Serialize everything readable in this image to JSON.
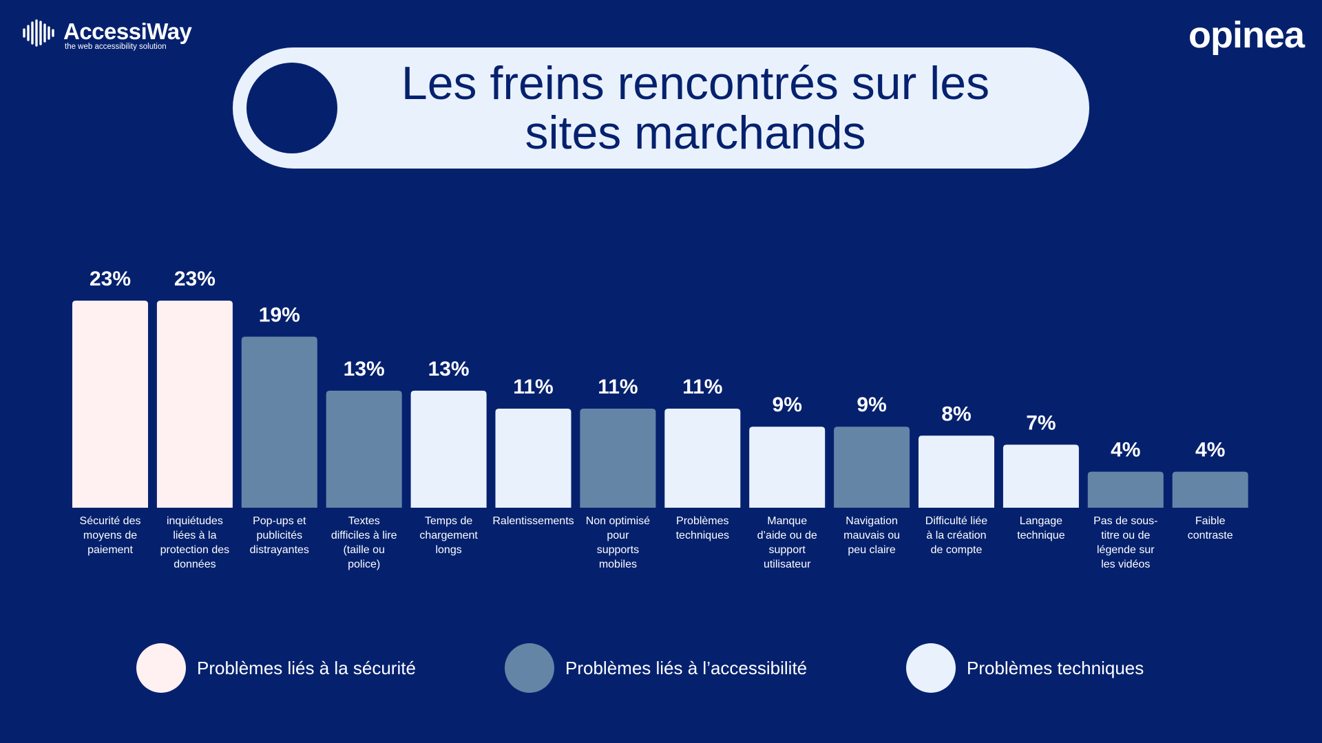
{
  "brand": {
    "left_name": "AccessiWay",
    "left_tagline": "the web accessibility solution",
    "right_name": "opinea"
  },
  "title": {
    "line1": "Les freins rencontrés sur les",
    "line2": "sites marchands"
  },
  "colors": {
    "background": "#05216e",
    "security": "#fff0f2",
    "accessibility": "#6585a6",
    "technical": "#e9f1fd"
  },
  "chart_data": {
    "type": "bar",
    "title": "Les freins rencontrés sur les sites marchands",
    "xlabel": "",
    "ylabel": "",
    "ylim": [
      0,
      23
    ],
    "grid": false,
    "unit": "%",
    "bars": [
      {
        "label": "Sécurité des moyens de paiement",
        "lines": [
          "Sécurité des",
          "moyens de",
          "paiement"
        ],
        "value": 23,
        "group": "security"
      },
      {
        "label": "inquiétudes liées à la protection des données",
        "lines": [
          "inquiétudes",
          "liées à la",
          "protection des",
          "données"
        ],
        "value": 23,
        "group": "security"
      },
      {
        "label": "Pop-ups et publicités distrayantes",
        "lines": [
          "Pop-ups et",
          "publicités",
          "distrayantes"
        ],
        "value": 19,
        "group": "accessibility"
      },
      {
        "label": "Textes difficiles à lire (taille ou police)",
        "lines": [
          "Textes",
          "difficiles à lire",
          "(taille ou",
          "police)"
        ],
        "value": 13,
        "group": "accessibility"
      },
      {
        "label": "Temps de chargement longs",
        "lines": [
          "Temps de",
          "chargement",
          "longs"
        ],
        "value": 13,
        "group": "technical"
      },
      {
        "label": "Ralentissements",
        "lines": [
          "Ralentissements"
        ],
        "value": 11,
        "group": "technical"
      },
      {
        "label": "Non optimisé pour supports mobiles",
        "lines": [
          "Non optimisé",
          "pour",
          "supports",
          "mobiles"
        ],
        "value": 11,
        "group": "accessibility"
      },
      {
        "label": "Problèmes techniques",
        "lines": [
          "Problèmes",
          "techniques"
        ],
        "value": 11,
        "group": "technical"
      },
      {
        "label": "Manque d'aide ou de support utilisateur",
        "lines": [
          "Manque",
          "d’aide ou de",
          "support",
          "utilisateur"
        ],
        "value": 9,
        "group": "technical"
      },
      {
        "label": "Navigation mauvais ou peu claire",
        "lines": [
          "Navigation",
          "mauvais ou",
          "peu claire"
        ],
        "value": 9,
        "group": "accessibility"
      },
      {
        "label": "Difficulté liée à la création de compte",
        "lines": [
          "Difficulté liée",
          "à la création",
          "de compte"
        ],
        "value": 8,
        "group": "technical"
      },
      {
        "label": "Langage technique",
        "lines": [
          "Langage",
          "technique"
        ],
        "value": 7,
        "group": "technical"
      },
      {
        "label": "Pas de sous-titre ou de légende sur les vidéos",
        "lines": [
          "Pas de sous-",
          "titre ou de",
          "légende sur",
          "les vidéos"
        ],
        "value": 4,
        "group": "accessibility"
      },
      {
        "label": "Faible contraste",
        "lines": [
          "Faible",
          "contraste"
        ],
        "value": 4,
        "group": "accessibility"
      }
    ],
    "legend": [
      {
        "group": "security",
        "label": "Problèmes liés à la sécurité"
      },
      {
        "group": "accessibility",
        "label": "Problèmes liés à l’accessibilité"
      },
      {
        "group": "technical",
        "label": "Problèmes techniques"
      }
    ]
  }
}
